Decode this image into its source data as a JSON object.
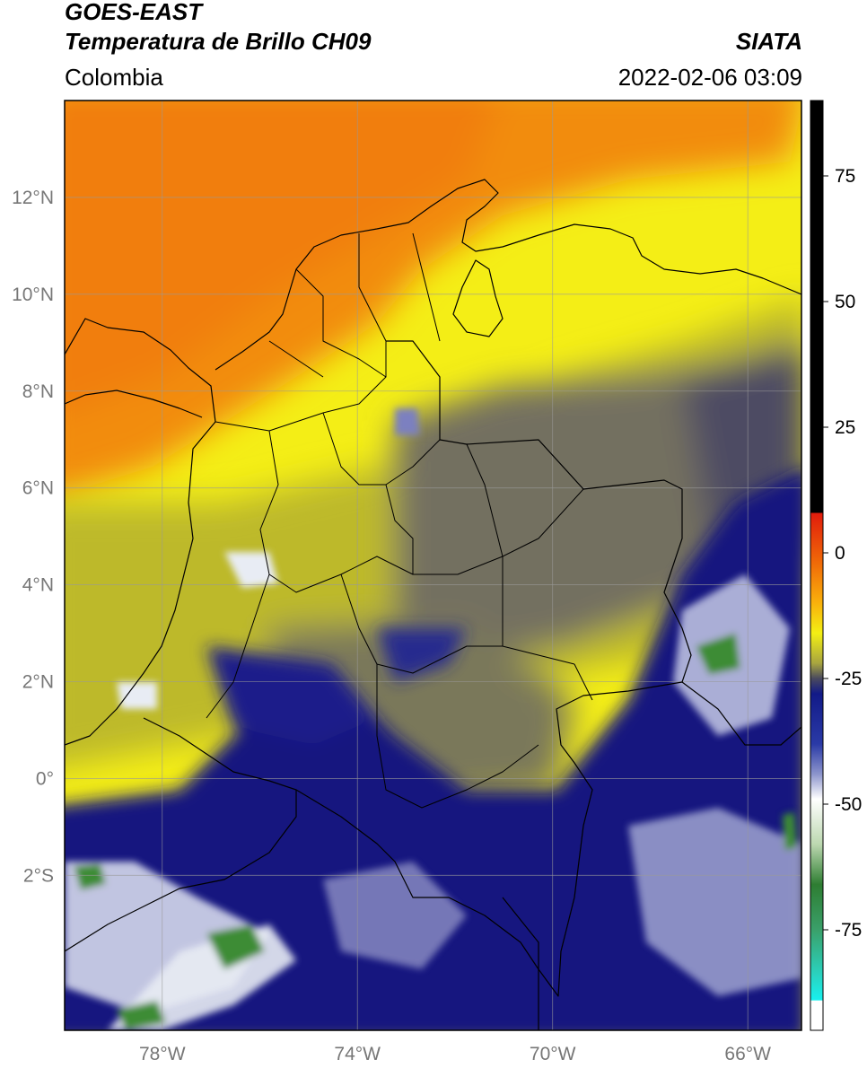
{
  "header": {
    "line1": "GOES-EAST",
    "line2": "Temperatura de Brillo CH09",
    "brand": "SIATA",
    "region": "Colombia",
    "datetime": "2022-02-06 03:09"
  },
  "map": {
    "lon_range": [
      -80,
      -64.9
    ],
    "lat_range": [
      -5.2,
      14.0
    ],
    "lat_ticks": [
      {
        "value": 12,
        "label": "12°N"
      },
      {
        "value": 10,
        "label": "10°N"
      },
      {
        "value": 8,
        "label": "8°N"
      },
      {
        "value": 6,
        "label": "6°N"
      },
      {
        "value": 4,
        "label": "4°N"
      },
      {
        "value": 2,
        "label": "2°N"
      },
      {
        "value": 0,
        "label": "0°"
      },
      {
        "value": -2,
        "label": "2°S"
      }
    ],
    "lon_ticks": [
      {
        "value": -78,
        "label": "78°W"
      },
      {
        "value": -74,
        "label": "74°W"
      },
      {
        "value": -70,
        "label": "70°W"
      },
      {
        "value": -66,
        "label": "66°W"
      }
    ],
    "grid": true,
    "colors": {
      "orange": "#f28c0f",
      "yellow": "#f4ee16",
      "olive": "#b9b52c",
      "slate": "#6e6c62",
      "navy": "#14167f",
      "white": "#e8ecf4",
      "green": "#3e8c34"
    }
  },
  "colorbar": {
    "range": [
      -95,
      90
    ],
    "ticks": [
      {
        "value": 75,
        "label": "75"
      },
      {
        "value": 50,
        "label": "50"
      },
      {
        "value": 25,
        "label": "25"
      },
      {
        "value": 0,
        "label": "0"
      },
      {
        "value": -25,
        "label": "-25"
      },
      {
        "value": -50,
        "label": "-50"
      },
      {
        "value": -75,
        "label": "-75"
      }
    ],
    "stops": [
      {
        "value": 90,
        "color": "#000000"
      },
      {
        "value": 8,
        "color": "#000000"
      },
      {
        "value": 7.9,
        "color": "#e11c0c"
      },
      {
        "value": -2,
        "color": "#f06a08"
      },
      {
        "value": -10,
        "color": "#f9b10c"
      },
      {
        "value": -16,
        "color": "#f3ef14"
      },
      {
        "value": -22,
        "color": "#a7a440"
      },
      {
        "value": -25,
        "color": "#4a4a5e"
      },
      {
        "value": -28,
        "color": "#121a88"
      },
      {
        "value": -38,
        "color": "#2a3aa6"
      },
      {
        "value": -44,
        "color": "#8c94cc"
      },
      {
        "value": -49,
        "color": "#ffffff"
      },
      {
        "value": -58,
        "color": "#bcd8b0"
      },
      {
        "value": -66,
        "color": "#2e7d32"
      },
      {
        "value": -75,
        "color": "#3aa06a"
      },
      {
        "value": -84,
        "color": "#2ad3c0"
      },
      {
        "value": -89,
        "color": "#18f0ee"
      },
      {
        "value": -89.1,
        "color": "#ffffff"
      },
      {
        "value": -95,
        "color": "#ffffff"
      }
    ]
  }
}
